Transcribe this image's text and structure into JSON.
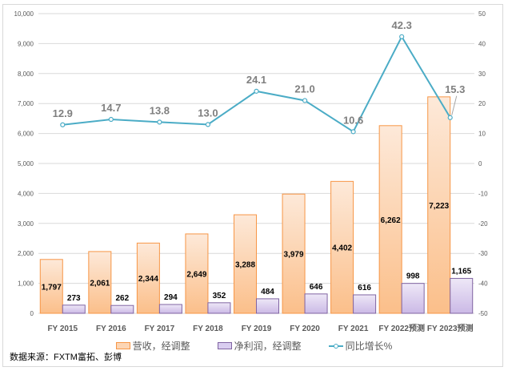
{
  "chart_data": {
    "type": "bar",
    "categories": [
      "FY 2015",
      "FY 2016",
      "FY 2017",
      "FY 2018",
      "FY 2019",
      "FY 2020",
      "FY 2021",
      "FY 2022预测",
      "FY 2023预测"
    ],
    "series": [
      {
        "name": "营收，经调整",
        "type": "bar",
        "axis": "left",
        "color": "#f79646",
        "values": [
          1797,
          2061,
          2344,
          2649,
          3288,
          3979,
          4402,
          6262,
          7223
        ],
        "labels": [
          "1,797",
          "2,061",
          "2,344",
          "2,649",
          "3,288",
          "3,979",
          "4,402",
          "6,262",
          "7,223"
        ]
      },
      {
        "name": "净利润，经调整",
        "type": "bar",
        "axis": "left",
        "color": "#8064a2",
        "values": [
          273,
          262,
          294,
          352,
          484,
          646,
          616,
          998,
          1165
        ],
        "labels": [
          "273",
          "262",
          "294",
          "352",
          "484",
          "646",
          "616",
          "998",
          "1,165"
        ]
      },
      {
        "name": "同比增长%",
        "type": "line",
        "axis": "right",
        "color": "#4bacc6",
        "values": [
          12.9,
          14.7,
          13.8,
          13.0,
          24.1,
          21.0,
          10.6,
          42.3,
          15.3
        ],
        "labels": [
          "12.9",
          "14.7",
          "13.8",
          "13.0",
          "24.1",
          "21.0",
          "10.6",
          "42.3",
          "15.3"
        ]
      }
    ],
    "ylim": [
      0,
      10000
    ],
    "y2lim": [
      -50,
      50
    ],
    "yticks": [
      "0",
      "1,000",
      "2,000",
      "3,000",
      "4,000",
      "5,000",
      "6,000",
      "7,000",
      "8,000",
      "9,000",
      "10,000"
    ],
    "y2ticks": [
      "-50",
      "-40",
      "-30",
      "-20",
      "-10",
      "0",
      "10",
      "20",
      "30",
      "40",
      "50"
    ],
    "grid": true,
    "legend": "bottom"
  },
  "source": "数据来源：FXTM富拓、彭博"
}
